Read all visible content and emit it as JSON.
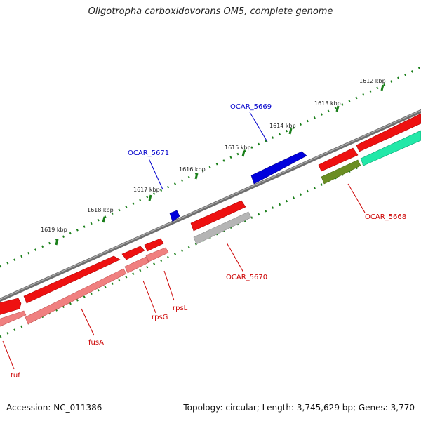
{
  "title": "Oligotropha carboxidovorans OM5, complete genome",
  "accession": "Accession: NC_011386",
  "summary": "Topology: circular; Length: 3,745,629 bp; Genes: 3,770",
  "colors": {
    "backbone": "#808080",
    "ticks": "#1a7f1a",
    "cds": "#ee0000",
    "cds_light": "#f08080",
    "protein": "#0000dd",
    "rna": "#a9a9a9",
    "teal": "#00e8a0",
    "olive": "#6b8e23",
    "gene_label_red": "#cc0000",
    "gene_label_blue": "#0000cc"
  },
  "scale_labels": [
    "1612 kbp",
    "1613 kbp",
    "1614 kbp",
    "1615 kbp",
    "1616 kbp",
    "1617 kbp",
    "1618 kbp",
    "1619 kbp"
  ],
  "gene_labels": {
    "ocar_5669": "OCAR_5669",
    "ocar_5671": "OCAR_5671",
    "ocar_5668": "OCAR_5668",
    "ocar_5670": "OCAR_5670",
    "rpsl": "rpsL",
    "rpsg": "rpsG",
    "fusa": "fusA",
    "tuf": "tuf"
  }
}
